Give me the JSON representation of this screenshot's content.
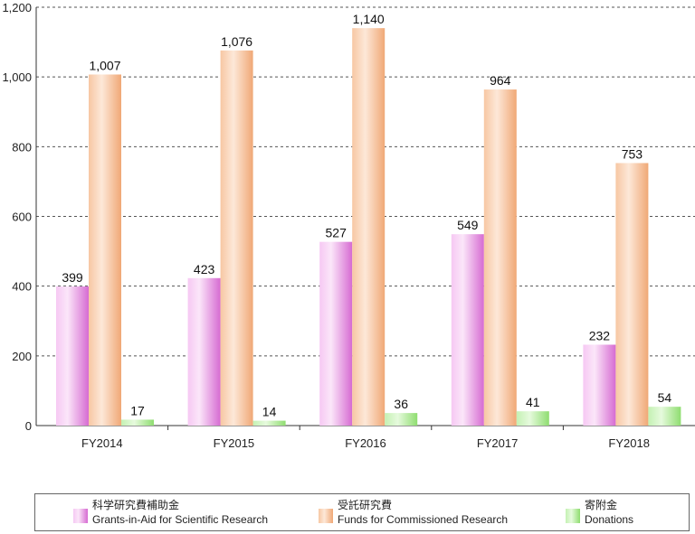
{
  "chart_data": {
    "type": "bar",
    "categories": [
      "FY2014",
      "FY2015",
      "FY2016",
      "FY2017",
      "FY2018"
    ],
    "series": [
      {
        "name": "科学研究費補助金 Grants-in-Aid for Scientific Research",
        "values": [
          399,
          423,
          527,
          549,
          232
        ],
        "labels": [
          "399",
          "423",
          "527",
          "549",
          "232"
        ],
        "color": "#e38ae0"
      },
      {
        "name": "受託研究費 Funds for Commissioned Research",
        "values": [
          1007,
          1076,
          1140,
          964,
          753
        ],
        "labels": [
          "1,007",
          "1,076",
          "1,140",
          "964",
          "753"
        ],
        "color": "#f5b98e"
      },
      {
        "name": "寄附金 Donations",
        "values": [
          17,
          14,
          36,
          41,
          54
        ],
        "labels": [
          "17",
          "14",
          "36",
          "41",
          "54"
        ],
        "color": "#a9e98f"
      }
    ],
    "yticks": [
      "0",
      "200",
      "400",
      "600",
      "800",
      "1,000",
      "1,200"
    ],
    "ylim": [
      0,
      1200
    ],
    "grid": true,
    "legend_position": "bottom"
  },
  "legend": [
    {
      "jp": "科学研究費補助金",
      "en": "Grants-in-Aid for Scientific Research"
    },
    {
      "jp": "受託研究費",
      "en": "Funds for Commissioned Research"
    },
    {
      "jp": "寄附金",
      "en": "Donations"
    }
  ]
}
